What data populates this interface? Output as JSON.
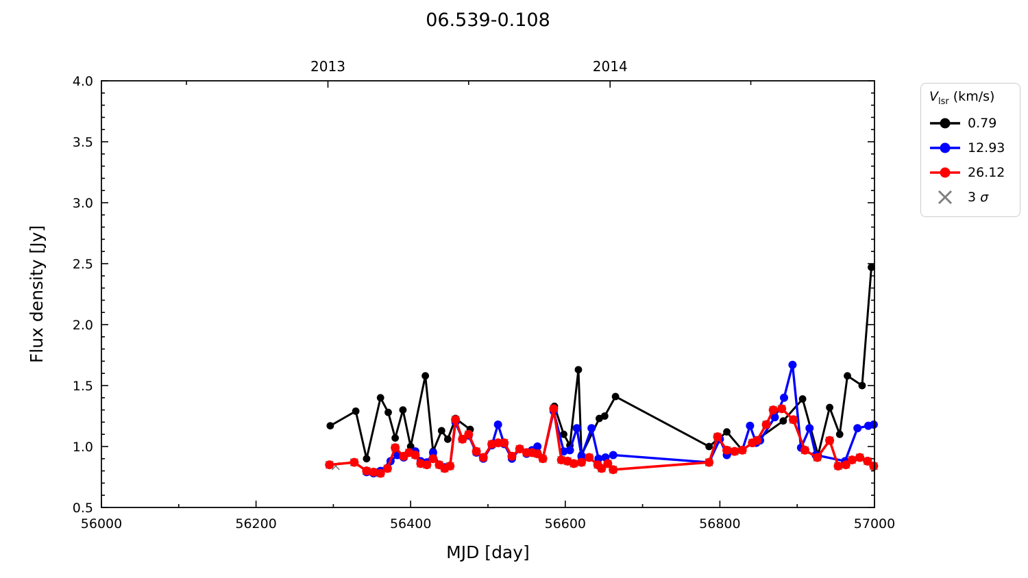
{
  "chart_data": {
    "type": "line",
    "title": "06.539-0.108",
    "axes": {
      "xlabel": "MJD [day]",
      "ylabel": "Flux density [Jy]",
      "xlim": [
        56000,
        57000
      ],
      "ylim": [
        0.5,
        4.0
      ],
      "x_major_ticks": [
        56000,
        56200,
        56400,
        56600,
        56800,
        57000
      ],
      "x_minor_step": 100,
      "y_major_ticks": [
        0.5,
        1.0,
        1.5,
        2.0,
        2.5,
        3.0,
        3.5,
        4.0
      ],
      "y_minor_step": 0.1,
      "top_year_ticks": [
        {
          "label": "2013",
          "mjd": 56293
        },
        {
          "label": "2014",
          "mjd": 56658
        }
      ],
      "top_minor_ticks": [
        56110,
        56475,
        56840
      ],
      "grid": false
    },
    "legend": {
      "position": "outside-top-right",
      "title": {
        "var": "V",
        "sub": "lsr",
        "rest": " (km/s)"
      },
      "entries": [
        {
          "label": "0.79",
          "color": "#000000"
        },
        {
          "label": "12.93",
          "color": "#0000ff"
        },
        {
          "label": "26.12",
          "color": "#ff0000"
        }
      ],
      "sigma": {
        "prefix": "3 ",
        "symbol": "σ",
        "color": "#7f7f7f"
      }
    },
    "series": [
      {
        "name": "0.79",
        "color": "#000000",
        "line_width": 3.0,
        "marker_radius": 5.4,
        "segments": [
          [
            [
              56296,
              1.17
            ],
            [
              56329,
              1.29
            ],
            [
              56343,
              0.9
            ],
            [
              56361,
              1.4
            ],
            [
              56371,
              1.28
            ],
            [
              56380,
              1.07
            ],
            [
              56390,
              1.3
            ],
            [
              56400,
              1.0
            ],
            [
              56419,
              1.58
            ],
            [
              56429,
              0.96
            ],
            [
              56440,
              1.13
            ],
            [
              56448,
              1.06
            ],
            [
              56458,
              1.23
            ],
            [
              56477,
              1.14
            ]
          ],
          [
            [
              56586,
              1.33
            ],
            [
              56598,
              1.1
            ],
            [
              56606,
              1.01
            ],
            [
              56617,
              1.63
            ],
            [
              56621,
              0.93
            ],
            [
              56644,
              1.23
            ],
            [
              56651,
              1.25
            ],
            [
              56665,
              1.41
            ],
            [
              56786,
              1.0
            ],
            [
              56809,
              1.12
            ],
            [
              56829,
              0.97
            ],
            [
              56882,
              1.21
            ],
            [
              56907,
              1.39
            ],
            [
              56927,
              0.93
            ],
            [
              56942,
              1.32
            ],
            [
              56955,
              1.1
            ],
            [
              56965,
              1.58
            ],
            [
              56984,
              1.5
            ],
            [
              56996,
              2.47
            ]
          ]
        ]
      },
      {
        "name": "12.93",
        "color": "#0000ff",
        "line_width": 3.4,
        "marker_radius": 6.0,
        "segments": [
          [
            [
              56343,
              0.79
            ],
            [
              56352,
              0.78
            ],
            [
              56361,
              0.8
            ],
            [
              56374,
              0.88
            ],
            [
              56383,
              0.93
            ],
            [
              56391,
              0.91
            ],
            [
              56398,
              0.95
            ],
            [
              56406,
              0.96
            ],
            [
              56413,
              0.88
            ],
            [
              56421,
              0.87
            ],
            [
              56429,
              0.95
            ],
            [
              56437,
              0.85
            ],
            [
              56444,
              0.83
            ],
            [
              56451,
              0.84
            ],
            [
              56458,
              1.2
            ],
            [
              56467,
              1.06
            ],
            [
              56475,
              1.09
            ],
            [
              56485,
              0.95
            ],
            [
              56494,
              0.9
            ],
            [
              56505,
              1.01
            ],
            [
              56513,
              1.18
            ],
            [
              56521,
              1.02
            ],
            [
              56531,
              0.9
            ],
            [
              56541,
              0.98
            ],
            [
              56550,
              0.94
            ],
            [
              56557,
              0.97
            ],
            [
              56564,
              1.0
            ],
            [
              56571,
              0.9
            ],
            [
              56585,
              1.29
            ],
            [
              56598,
              0.96
            ],
            [
              56606,
              0.97
            ],
            [
              56615,
              1.15
            ],
            [
              56621,
              0.92
            ],
            [
              56634,
              1.15
            ],
            [
              56643,
              0.9
            ],
            [
              56652,
              0.91
            ],
            [
              56662,
              0.93
            ],
            [
              56786,
              0.87
            ],
            [
              56800,
              1.06
            ],
            [
              56809,
              0.93
            ],
            [
              56819,
              0.96
            ],
            [
              56829,
              0.97
            ],
            [
              56839,
              1.17
            ],
            [
              56847,
              1.03
            ],
            [
              56852,
              1.05
            ],
            [
              56871,
              1.24
            ],
            [
              56883,
              1.4
            ],
            [
              56894,
              1.67
            ],
            [
              56905,
              0.99
            ],
            [
              56916,
              1.15
            ],
            [
              56924,
              0.93
            ],
            [
              56962,
              0.88
            ],
            [
              56978,
              1.15
            ],
            [
              56992,
              1.17
            ],
            [
              56999,
              1.18
            ]
          ]
        ]
      },
      {
        "name": "26.12",
        "color": "#ff0000",
        "line_width": 3.6,
        "marker_radius": 6.5,
        "segments": [
          [
            [
              56295,
              0.85
            ],
            [
              56327,
              0.87
            ],
            [
              56343,
              0.8
            ],
            [
              56352,
              0.79
            ],
            [
              56361,
              0.78
            ],
            [
              56370,
              0.82
            ],
            [
              56380,
              0.99
            ],
            [
              56391,
              0.92
            ],
            [
              56398,
              0.95
            ],
            [
              56406,
              0.93
            ],
            [
              56413,
              0.86
            ],
            [
              56421,
              0.85
            ],
            [
              56429,
              0.9
            ],
            [
              56437,
              0.85
            ],
            [
              56444,
              0.82
            ],
            [
              56451,
              0.84
            ],
            [
              56458,
              1.22
            ],
            [
              56467,
              1.06
            ],
            [
              56475,
              1.1
            ],
            [
              56485,
              0.96
            ],
            [
              56494,
              0.91
            ],
            [
              56505,
              1.02
            ],
            [
              56513,
              1.03
            ],
            [
              56521,
              1.03
            ],
            [
              56531,
              0.92
            ],
            [
              56541,
              0.98
            ],
            [
              56550,
              0.95
            ],
            [
              56557,
              0.95
            ],
            [
              56564,
              0.94
            ],
            [
              56571,
              0.9
            ],
            [
              56585,
              1.31
            ],
            [
              56595,
              0.89
            ],
            [
              56603,
              0.88
            ],
            [
              56611,
              0.86
            ],
            [
              56621,
              0.87
            ],
            [
              56631,
              0.91
            ],
            [
              56642,
              0.85
            ],
            [
              56647,
              0.82
            ],
            [
              56655,
              0.86
            ],
            [
              56662,
              0.81
            ],
            [
              56786,
              0.87
            ],
            [
              56797,
              1.08
            ],
            [
              56809,
              0.97
            ],
            [
              56819,
              0.96
            ],
            [
              56829,
              0.97
            ],
            [
              56842,
              1.03
            ],
            [
              56848,
              1.05
            ],
            [
              56860,
              1.18
            ],
            [
              56869,
              1.3
            ],
            [
              56880,
              1.31
            ],
            [
              56895,
              1.22
            ],
            [
              56910,
              0.97
            ],
            [
              56926,
              0.91
            ],
            [
              56942,
              1.05
            ],
            [
              56953,
              0.84
            ],
            [
              56963,
              0.85
            ],
            [
              56971,
              0.89
            ],
            [
              56981,
              0.91
            ],
            [
              56991,
              0.88
            ],
            [
              56999,
              0.84
            ]
          ]
        ]
      }
    ],
    "sigma3_markers": {
      "color": "#7f7f7f",
      "size": 5.5,
      "points": [
        [
          56295,
          0.85
        ],
        [
          56303,
          0.84
        ],
        [
          56327,
          0.87
        ],
        [
          56343,
          0.8
        ],
        [
          56352,
          0.79
        ],
        [
          56361,
          0.78
        ],
        [
          56370,
          0.82
        ],
        [
          56380,
          0.99
        ],
        [
          56391,
          0.92
        ],
        [
          56398,
          0.95
        ],
        [
          56406,
          0.93
        ],
        [
          56413,
          0.86
        ],
        [
          56421,
          0.85
        ],
        [
          56429,
          0.9
        ],
        [
          56437,
          0.85
        ],
        [
          56444,
          0.82
        ],
        [
          56451,
          0.84
        ],
        [
          56458,
          1.22
        ],
        [
          56467,
          1.06
        ],
        [
          56475,
          1.1
        ],
        [
          56485,
          0.96
        ],
        [
          56494,
          0.91
        ],
        [
          56505,
          1.02
        ],
        [
          56513,
          1.03
        ],
        [
          56521,
          1.03
        ],
        [
          56531,
          0.92
        ],
        [
          56541,
          0.98
        ],
        [
          56550,
          0.95
        ],
        [
          56557,
          0.95
        ],
        [
          56564,
          0.94
        ],
        [
          56571,
          0.9
        ],
        [
          56585,
          1.31
        ],
        [
          56595,
          0.89
        ],
        [
          56603,
          0.88
        ],
        [
          56611,
          0.86
        ],
        [
          56621,
          0.87
        ],
        [
          56631,
          0.91
        ],
        [
          56642,
          0.85
        ],
        [
          56647,
          0.82
        ],
        [
          56655,
          0.86
        ],
        [
          56662,
          0.81
        ],
        [
          56786,
          0.87
        ],
        [
          56797,
          1.08
        ],
        [
          56809,
          0.97
        ],
        [
          56819,
          0.96
        ],
        [
          56829,
          0.97
        ],
        [
          56842,
          1.03
        ],
        [
          56848,
          1.05
        ],
        [
          56860,
          1.18
        ],
        [
          56869,
          1.3
        ],
        [
          56880,
          1.31
        ],
        [
          56895,
          1.22
        ],
        [
          56910,
          0.97
        ],
        [
          56926,
          0.91
        ],
        [
          56942,
          1.05
        ],
        [
          56953,
          0.84
        ],
        [
          56963,
          0.85
        ],
        [
          56971,
          0.89
        ],
        [
          56981,
          0.91
        ],
        [
          56991,
          0.88
        ],
        [
          56999,
          0.84
        ]
      ]
    }
  }
}
